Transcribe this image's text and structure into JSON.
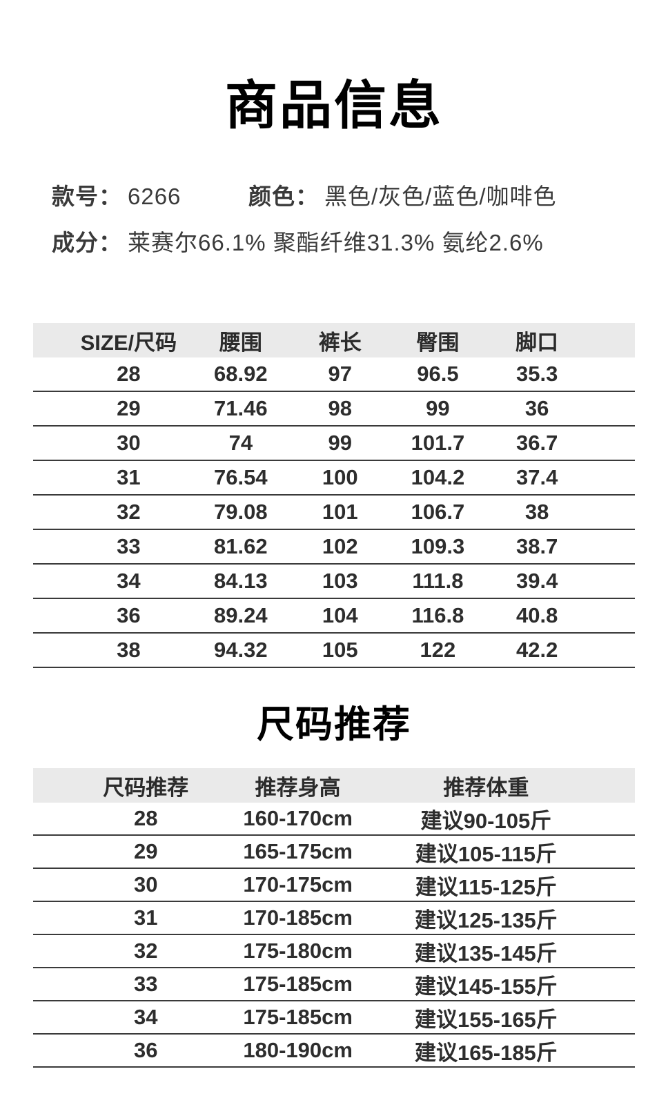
{
  "page": {
    "title": "商品信息"
  },
  "info": {
    "style_label": "款号：",
    "style_value": "6266",
    "color_label": "颜色：",
    "color_value": "黑色/灰色/蓝色/咖啡色",
    "composition_label": "成分：",
    "composition_value": "莱赛尔66.1% 聚酯纤维31.3% 氨纶2.6%"
  },
  "size_table": {
    "headers": [
      "SIZE/尺码",
      "腰围",
      "裤长",
      "臀围",
      "脚口"
    ],
    "rows": [
      [
        "28",
        "68.92",
        "97",
        "96.5",
        "35.3"
      ],
      [
        "29",
        "71.46",
        "98",
        "99",
        "36"
      ],
      [
        "30",
        "74",
        "99",
        "101.7",
        "36.7"
      ],
      [
        "31",
        "76.54",
        "100",
        "104.2",
        "37.4"
      ],
      [
        "32",
        "79.08",
        "101",
        "106.7",
        "38"
      ],
      [
        "33",
        "81.62",
        "102",
        "109.3",
        "38.7"
      ],
      [
        "34",
        "84.13",
        "103",
        "111.8",
        "39.4"
      ],
      [
        "36",
        "89.24",
        "104",
        "116.8",
        "40.8"
      ],
      [
        "38",
        "94.32",
        "105",
        "122",
        "42.2"
      ]
    ]
  },
  "recommend": {
    "title": "尺码推荐",
    "headers": [
      "尺码推荐",
      "推荐身高",
      "推荐体重"
    ],
    "rows": [
      [
        "28",
        "160-170cm",
        "建议90-105斤"
      ],
      [
        "29",
        "165-175cm",
        "建议105-115斤"
      ],
      [
        "30",
        "170-175cm",
        "建议115-125斤"
      ],
      [
        "31",
        "170-185cm",
        "建议125-135斤"
      ],
      [
        "32",
        "175-180cm",
        "建议135-145斤"
      ],
      [
        "33",
        "175-185cm",
        "建议145-155斤"
      ],
      [
        "34",
        "175-185cm",
        "建议155-165斤"
      ],
      [
        "36",
        "180-190cm",
        "建议165-185斤"
      ]
    ]
  },
  "colors": {
    "background": "#ffffff",
    "title_text": "#000000",
    "body_text": "#3a3a3a",
    "table_header_bg": "#eaeaea",
    "row_line": "#3a3a3a"
  }
}
